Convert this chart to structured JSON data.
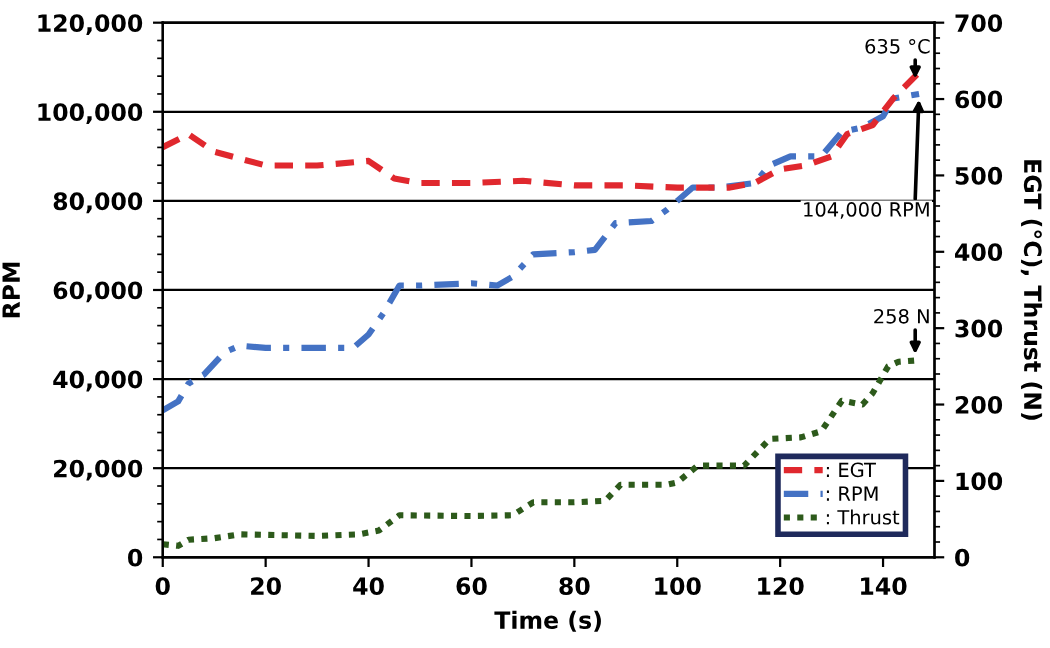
{
  "chart_data": {
    "type": "line",
    "xlabel": "Time (s)",
    "ylabel": "RPM",
    "y2label": "EGT (°C), Thrust (N)",
    "xlim": [
      0,
      150
    ],
    "xticks": [
      0,
      20,
      40,
      60,
      80,
      100,
      120,
      140
    ],
    "ylim": [
      0,
      120000
    ],
    "yticks": [
      {
        "value": 0,
        "label": "0"
      },
      {
        "value": 20000,
        "label": "20,000"
      },
      {
        "value": 40000,
        "label": "40,000"
      },
      {
        "value": 60000,
        "label": "60,000"
      },
      {
        "value": 80000,
        "label": "80,000"
      },
      {
        "value": 100000,
        "label": "100,000"
      },
      {
        "value": 120000,
        "label": "120,000"
      }
    ],
    "y2lim": [
      0,
      700
    ],
    "y2ticks": [
      0,
      100,
      200,
      300,
      400,
      500,
      600,
      700
    ],
    "grid": "y",
    "legend": "bottom right",
    "series": [
      {
        "name": ": EGT",
        "color": "#e0282e",
        "axis": "y2",
        "line_style": "dashed",
        "x": [
          0,
          5,
          10,
          20,
          30,
          40,
          45,
          50,
          60,
          70,
          80,
          90,
          100,
          110,
          115,
          120,
          125,
          130,
          133,
          138,
          142,
          147
        ],
        "values": [
          537,
          554,
          531,
          513,
          513,
          519,
          496,
          490,
          490,
          493,
          487,
          487,
          484,
          484,
          490,
          508,
          513,
          525,
          554,
          566,
          601,
          635
        ]
      },
      {
        "name": ": RPM",
        "color": "#4472c4",
        "axis": "y",
        "line_style": "dashdot",
        "x": [
          0,
          3,
          5,
          8,
          12,
          15,
          20,
          30,
          37,
          40,
          43,
          46,
          50,
          60,
          65,
          68,
          72,
          80,
          84,
          88,
          95,
          98,
          103,
          108,
          115,
          118,
          122,
          128,
          132,
          136,
          140,
          142,
          147
        ],
        "values": [
          33000,
          35000,
          39000,
          41000,
          46000,
          47500,
          47000,
          47000,
          47000,
          50000,
          55000,
          61000,
          61000,
          61500,
          61000,
          63000,
          68000,
          68500,
          69000,
          75000,
          75500,
          78000,
          83000,
          83000,
          84000,
          88000,
          90000,
          90000,
          95500,
          96500,
          99000,
          103000,
          104000
        ]
      },
      {
        "name": ": Thrust",
        "color": "#2d5a1b",
        "axis": "y2",
        "line_style": "dotted",
        "x": [
          0,
          3,
          5,
          10,
          15,
          30,
          38,
          42,
          46,
          60,
          68,
          72,
          80,
          86,
          89,
          98,
          100,
          104,
          113,
          118,
          124,
          128,
          132,
          136,
          138,
          141,
          143,
          147
        ],
        "values": [
          17,
          15,
          23,
          25,
          30,
          28,
          30,
          35,
          55,
          54,
          55,
          72,
          72,
          74,
          95,
          95,
          98,
          120,
          120,
          155,
          157,
          165,
          205,
          200,
          215,
          250,
          256,
          258
        ]
      }
    ],
    "annotations": [
      "635 °C",
      {
        "text": "104,000 RPM",
        "x": 147,
        "y": 104000
      },
      "258 N"
    ]
  }
}
